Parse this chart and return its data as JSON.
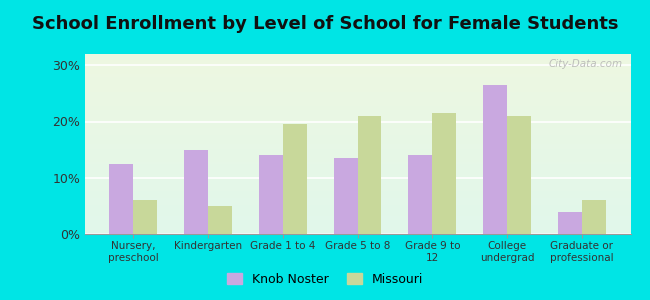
{
  "title": "School Enrollment by Level of School for Female Students",
  "categories": [
    "Nursery,\npreschool",
    "Kindergarten",
    "Grade 1 to 4",
    "Grade 5 to 8",
    "Grade 9 to\n12",
    "College\nundergrad",
    "Graduate or\nprofessional"
  ],
  "knob_noster": [
    12.5,
    15.0,
    14.0,
    13.5,
    14.0,
    26.5,
    4.0
  ],
  "missouri": [
    6.0,
    5.0,
    19.5,
    21.0,
    21.5,
    21.0,
    6.0
  ],
  "knob_color": "#c9a8e0",
  "missouri_color": "#c8d89a",
  "background_outer": "#00e5e5",
  "ylabel_ticks": [
    "0%",
    "10%",
    "20%",
    "30%"
  ],
  "yticks": [
    0,
    10,
    20,
    30
  ],
  "ylim": [
    0,
    32
  ],
  "title_fontsize": 13,
  "legend_labels": [
    "Knob Noster",
    "Missouri"
  ],
  "watermark": "City-Data.com"
}
